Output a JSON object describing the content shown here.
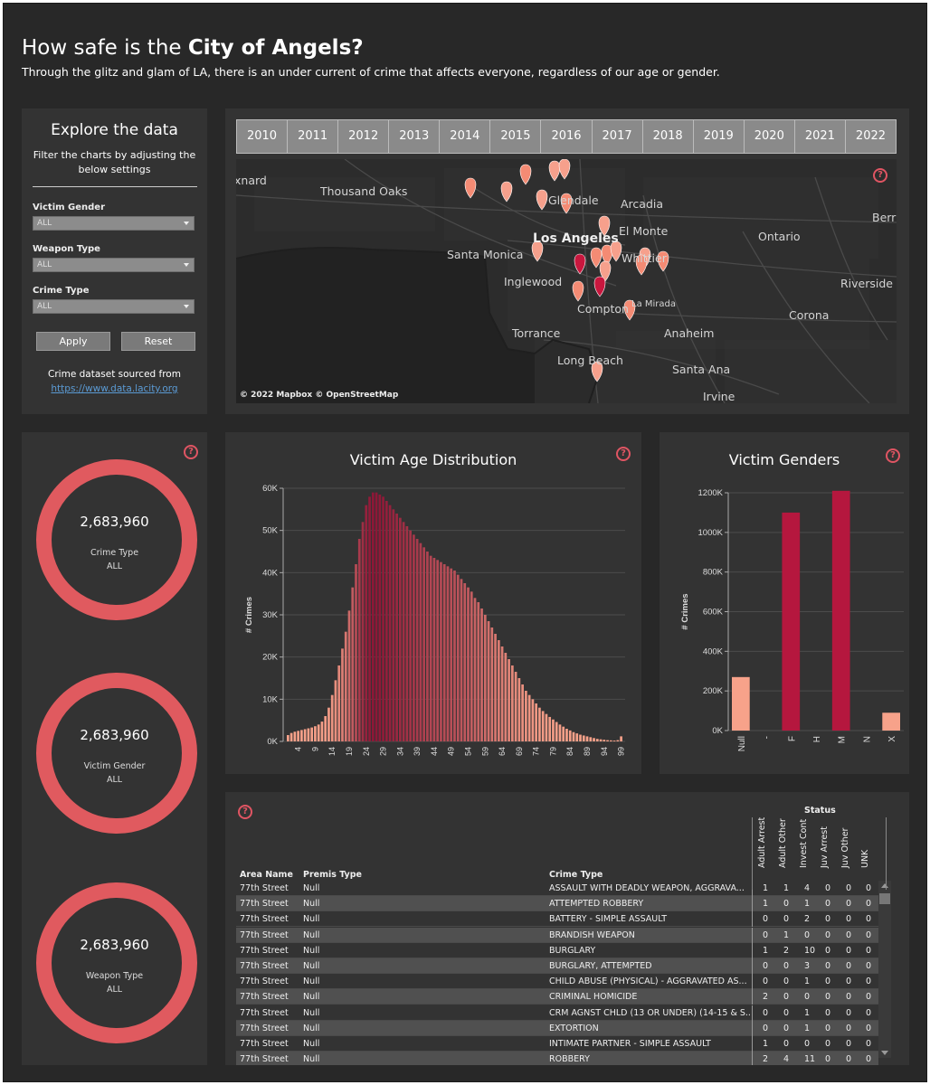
{
  "header": {
    "title_prefix": "How safe is the ",
    "title_bold": "City of Angels?",
    "subtitle": "Through the glitz and glam of LA, there is an under current of crime that affects everyone, regardless of our age or gender."
  },
  "filters": {
    "heading": "Explore the data",
    "subheading": "Filter the charts by adjusting the below settings",
    "victim_gender_label": "Victim Gender",
    "victim_gender_value": "ALL",
    "weapon_type_label": "Weapon Type",
    "weapon_type_value": "ALL",
    "crime_type_label": "Crime Type",
    "crime_type_value": "ALL",
    "apply_label": "Apply",
    "reset_label": "Reset",
    "source_text": "Crime dataset sourced from",
    "source_link": "https://www.data.lacity.org"
  },
  "years": [
    "2010",
    "2011",
    "2012",
    "2013",
    "2014",
    "2015",
    "2016",
    "2017",
    "2018",
    "2019",
    "2020",
    "2021",
    "2022"
  ],
  "map": {
    "attribution": "© 2022 Mapbox  © OpenStreetMap",
    "help_icon": "question-icon",
    "places": [
      "xnard",
      "Thousand Oaks",
      "Glendale",
      "Arcadia",
      "Berr",
      "Los Angeles",
      "El Monte",
      "Ontario",
      "Santa Monica",
      "Inglewood",
      "Riverside",
      "La Mirada",
      "Compton",
      "Torrance",
      "Anaheim",
      "Corona",
      "Long Beach",
      "Santa Ana",
      "Irvine",
      "Whittier"
    ]
  },
  "kpis": [
    {
      "value": "2,683,960",
      "label": "Crime Type",
      "sub": "ALL"
    },
    {
      "value": "2,683,960",
      "label": "Victim Gender",
      "sub": "ALL"
    },
    {
      "value": "2,683,960",
      "label": "Weapon Type",
      "sub": "ALL"
    }
  ],
  "colors": {
    "bg": "#282828",
    "panel": "#333333",
    "accent": "#e05a5f",
    "dark_red": "#b5173e",
    "light_salmon": "#f7a28a"
  },
  "chart_data": [
    {
      "type": "bar",
      "title": "Victim Age Distribution",
      "ylabel": "# Crimes",
      "xlabel": "",
      "ylim": [
        0,
        60000
      ],
      "yticks": [
        "0K",
        "10K",
        "20K",
        "30K",
        "40K",
        "50K",
        "60K"
      ],
      "xticks": [
        "4",
        "9",
        "14",
        "19",
        "24",
        "29",
        "34",
        "39",
        "44",
        "49",
        "54",
        "59",
        "64",
        "69",
        "74",
        "79",
        "84",
        "89",
        "94",
        "99"
      ],
      "x_start": 1,
      "values": [
        1500,
        2000,
        2300,
        2500,
        2700,
        2900,
        3100,
        3300,
        3600,
        4000,
        4700,
        6000,
        8000,
        11000,
        14500,
        18000,
        22000,
        26000,
        31000,
        36500,
        42000,
        48000,
        52000,
        56000,
        58000,
        59000,
        59000,
        58500,
        58000,
        57000,
        56000,
        55000,
        54000,
        53000,
        52000,
        51000,
        50000,
        49000,
        48000,
        47000,
        46000,
        45000,
        44000,
        43500,
        43000,
        42500,
        42000,
        41500,
        41000,
        40500,
        39500,
        38500,
        37500,
        36500,
        35500,
        34000,
        33000,
        31500,
        30000,
        28500,
        27000,
        25500,
        24000,
        22500,
        21000,
        19500,
        18000,
        16500,
        15000,
        13500,
        12000,
        11000,
        10000,
        9000,
        8000,
        7200,
        6500,
        5800,
        5200,
        4600,
        4000,
        3500,
        3000,
        2600,
        2200,
        1900,
        1600,
        1400,
        1200,
        1000,
        800,
        600,
        500,
        400,
        300,
        250,
        200,
        300,
        1200
      ],
      "colors": {
        "low": "#f7a28a",
        "high": "#8c1435"
      }
    },
    {
      "type": "bar",
      "title": "Victim Genders",
      "ylabel": "# Crimes",
      "ylim": [
        0,
        1200000
      ],
      "yticks": [
        "0K",
        "200K",
        "400K",
        "600K",
        "800K",
        "1000K",
        "1200K"
      ],
      "categories": [
        "Null",
        "-",
        "F",
        "H",
        "M",
        "N",
        "X"
      ],
      "values": [
        270000,
        0,
        1100000,
        0,
        1210000,
        0,
        90000
      ],
      "colors": [
        "#f7a28a",
        "#b5173e",
        "#b5173e",
        "#b5173e",
        "#b5173e",
        "#b5173e",
        "#f7a28a"
      ]
    }
  ],
  "table": {
    "status_label": "Status",
    "col_area": "Area Name",
    "col_premis": "Premis Type",
    "col_crime": "Crime Type",
    "status_cols": [
      "Adult Arrest",
      "Adult Other",
      "Invest Cont",
      "Juv Arrest",
      "Juv Other",
      "UNK"
    ],
    "rows": [
      {
        "area": "77th Street",
        "premis": "Null",
        "crime": "ASSAULT WITH DEADLY WEAPON, AGGRAVA...",
        "v": [
          "1",
          "1",
          "4",
          "0",
          "0",
          "0"
        ]
      },
      {
        "area": "77th Street",
        "premis": "Null",
        "crime": "ATTEMPTED ROBBERY",
        "v": [
          "1",
          "0",
          "1",
          "0",
          "0",
          "0"
        ]
      },
      {
        "area": "77th Street",
        "premis": "Null",
        "crime": "BATTERY - SIMPLE ASSAULT",
        "v": [
          "0",
          "0",
          "2",
          "0",
          "0",
          "0"
        ]
      },
      {
        "area": "77th Street",
        "premis": "Null",
        "crime": "BRANDISH WEAPON",
        "v": [
          "0",
          "1",
          "0",
          "0",
          "0",
          "0"
        ]
      },
      {
        "area": "77th Street",
        "premis": "Null",
        "crime": "BURGLARY",
        "v": [
          "1",
          "2",
          "10",
          "0",
          "0",
          "0"
        ]
      },
      {
        "area": "77th Street",
        "premis": "Null",
        "crime": "BURGLARY, ATTEMPTED",
        "v": [
          "0",
          "0",
          "3",
          "0",
          "0",
          "0"
        ]
      },
      {
        "area": "77th Street",
        "premis": "Null",
        "crime": "CHILD ABUSE (PHYSICAL) - AGGRAVATED AS...",
        "v": [
          "0",
          "0",
          "1",
          "0",
          "0",
          "0"
        ]
      },
      {
        "area": "77th Street",
        "premis": "Null",
        "crime": "CRIMINAL HOMICIDE",
        "v": [
          "2",
          "0",
          "0",
          "0",
          "0",
          "0"
        ]
      },
      {
        "area": "77th Street",
        "premis": "Null",
        "crime": "CRM AGNST CHLD (13 OR UNDER) (14-15 & S...",
        "v": [
          "0",
          "0",
          "1",
          "0",
          "0",
          "0"
        ]
      },
      {
        "area": "77th Street",
        "premis": "Null",
        "crime": "EXTORTION",
        "v": [
          "0",
          "0",
          "1",
          "0",
          "0",
          "0"
        ]
      },
      {
        "area": "77th Street",
        "premis": "Null",
        "crime": "INTIMATE PARTNER - SIMPLE ASSAULT",
        "v": [
          "1",
          "0",
          "0",
          "0",
          "0",
          "0"
        ]
      },
      {
        "area": "77th Street",
        "premis": "Null",
        "crime": "ROBBERY",
        "v": [
          "2",
          "4",
          "11",
          "0",
          "0",
          "0"
        ]
      }
    ]
  }
}
